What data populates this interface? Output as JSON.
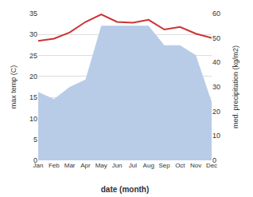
{
  "chart_data": {
    "type": "line",
    "xlabel": "date (month)",
    "ylabel": "max temp (C)",
    "y2label": "med. precipitation (kg/m2)",
    "categories": [
      "Jan",
      "Feb",
      "Mar",
      "Apr",
      "May",
      "Jun",
      "Jul",
      "Aug",
      "Sep",
      "Oct",
      "Nov",
      "Dec"
    ],
    "series": [
      {
        "type": "area",
        "axis": "y2",
        "color": "#b8cce8",
        "values": [
          28.0,
          25.0,
          30.0,
          33.0,
          55.0,
          55.0,
          55.0,
          55.0,
          47.0,
          47.0,
          43.0,
          24.0
        ]
      },
      {
        "type": "line",
        "color": "#cc3333",
        "values": [
          28.5,
          29.0,
          30.5,
          33.0,
          34.8,
          33.0,
          32.8,
          33.5,
          31.2,
          31.8,
          30.2,
          29.2
        ]
      }
    ],
    "ylim": [
      0,
      35
    ],
    "yticks": [
      0,
      5,
      10,
      15,
      20,
      25,
      30,
      35
    ],
    "y2lim": [
      0,
      60
    ],
    "y2ticks": [
      0,
      10,
      20,
      30,
      40,
      50,
      60
    ],
    "grid": true
  }
}
